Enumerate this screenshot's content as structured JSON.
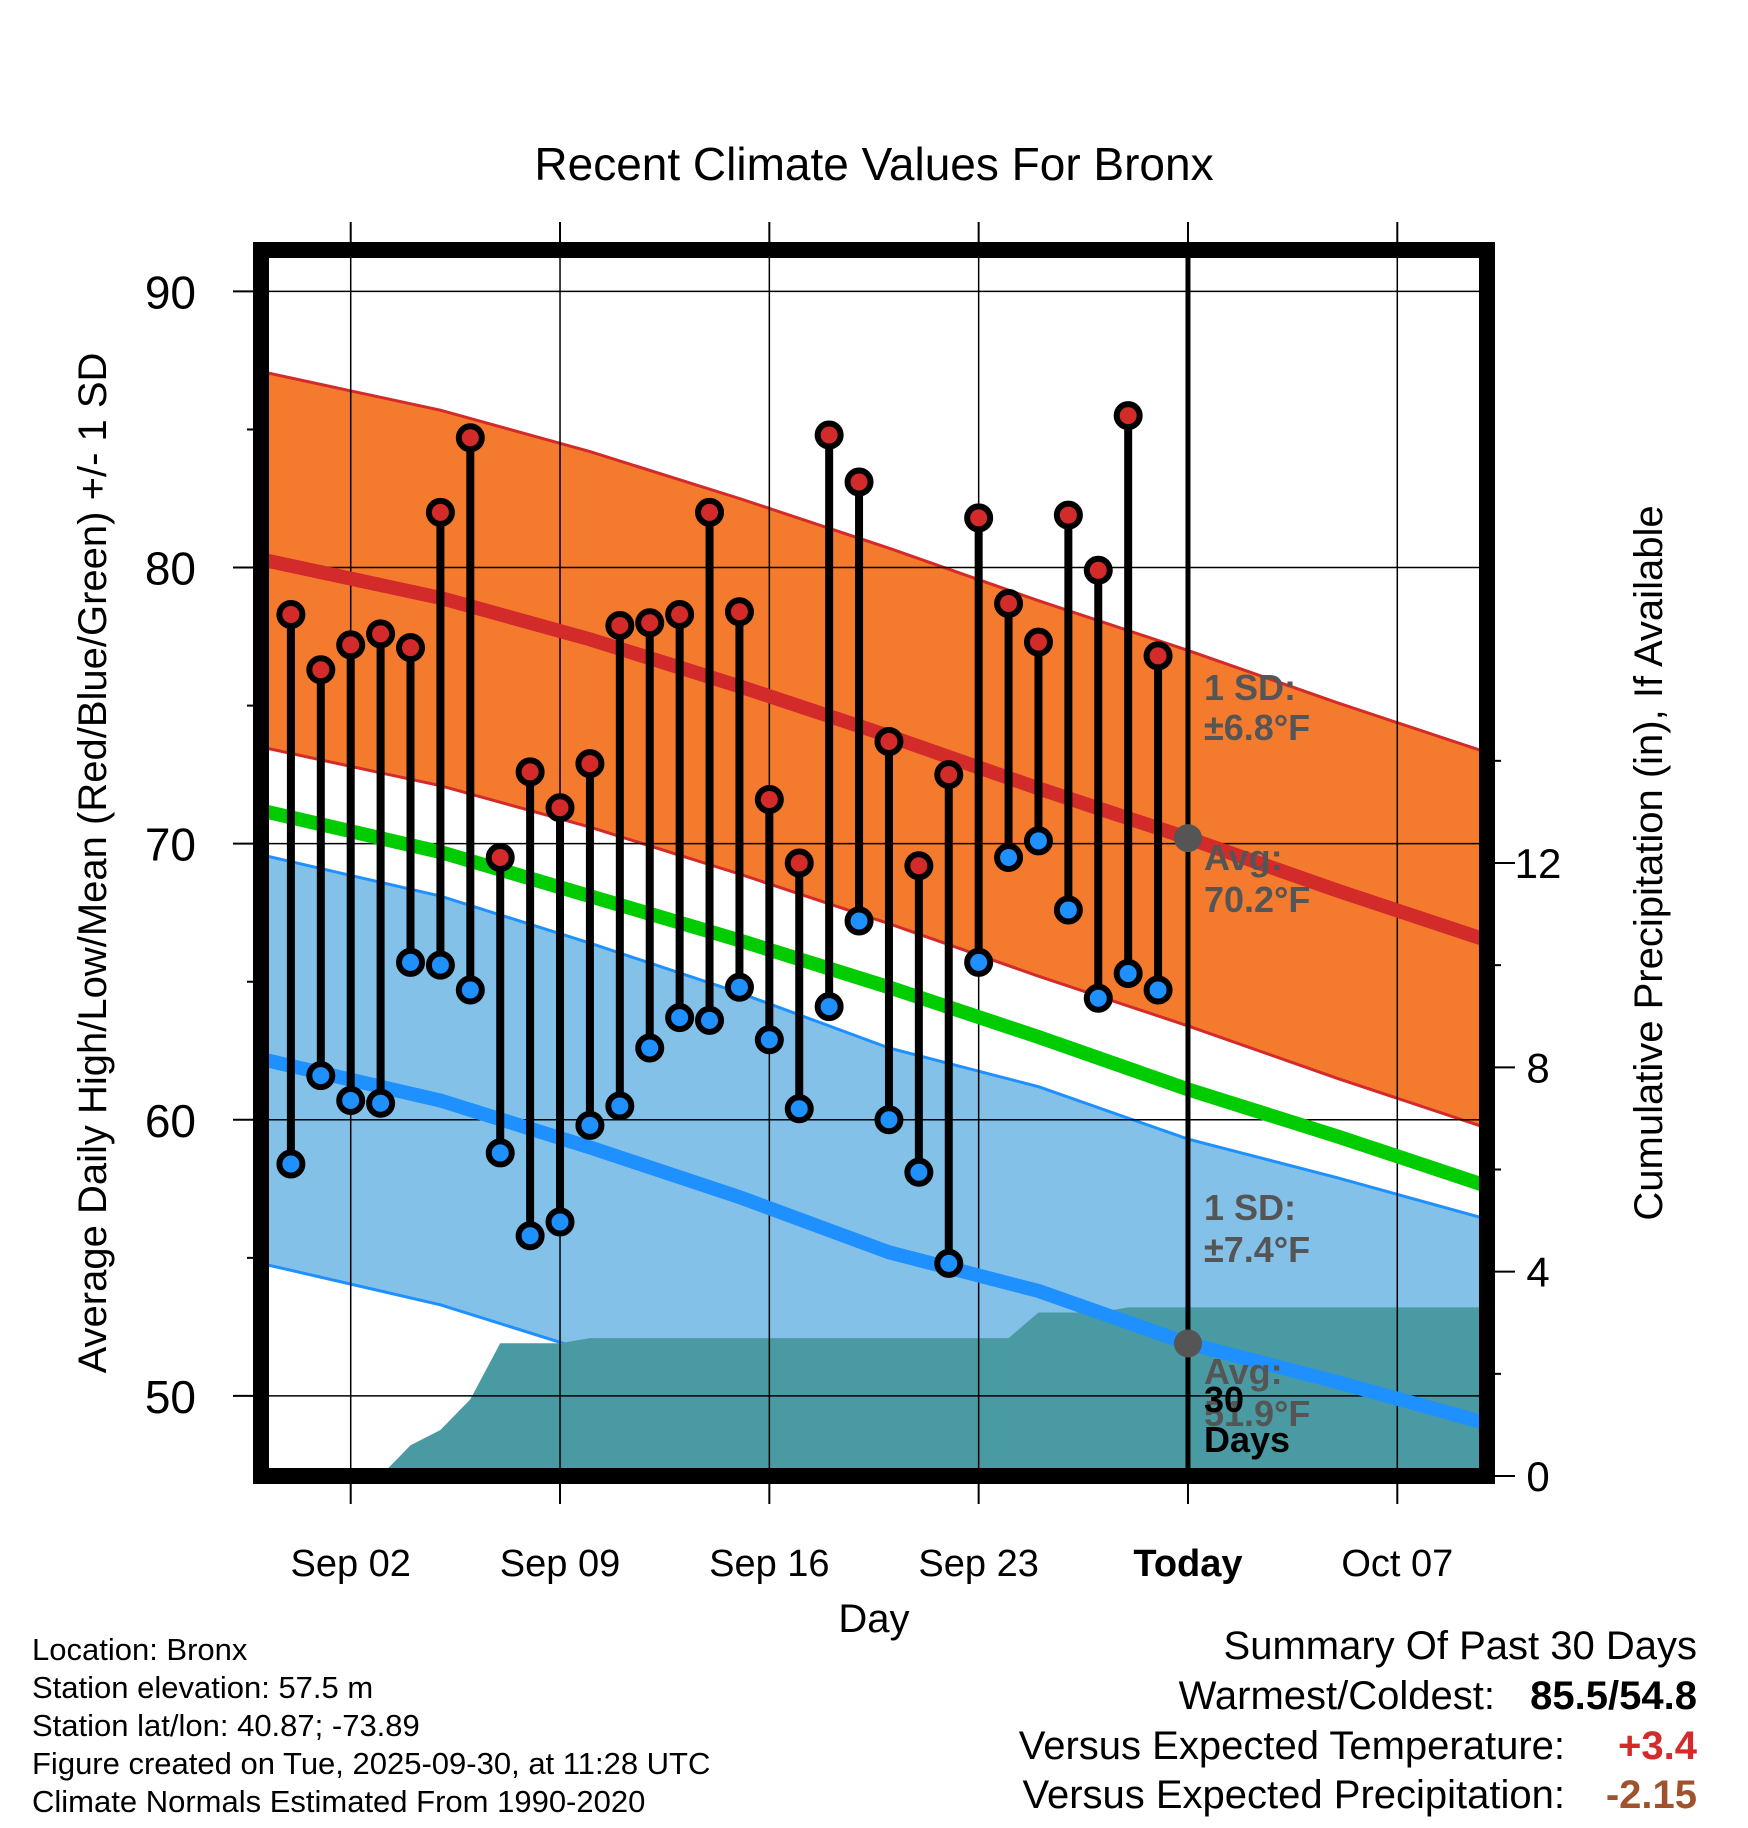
{
  "title": "Recent Climate Values For Bronx",
  "colors": {
    "high": "#d32a2a",
    "low": "#1e90ff",
    "mean": "#00cc00",
    "high_band": "#f47a2e",
    "low_band": "#84c1e8",
    "precip": "#4a9aa3",
    "today_marker": "#555555",
    "warm_anomaly": "#d32a2a",
    "precip_anomaly": "#a0522d"
  },
  "chart_data": {
    "type": "line",
    "title": "Recent Climate Values For Bronx",
    "xlabel": "Day",
    "ylabel_left": "Average Daily High/Low/Mean (Red/Blue/Green) +/- 1 SD",
    "ylabel_right": "Cumulative Precipitation (in), If Available",
    "x_range_days": [
      -1,
      40
    ],
    "ylim_left": [
      47.1,
      91.5
    ],
    "ylim_right": [
      0,
      24
    ],
    "yticks_left": [
      50,
      60,
      70,
      80,
      90
    ],
    "yticks_right": [
      0,
      4,
      8,
      12
    ],
    "xticks": [
      {
        "day": 2,
        "label": "Sep 02"
      },
      {
        "day": 9,
        "label": "Sep 09"
      },
      {
        "day": 16,
        "label": "Sep 16"
      },
      {
        "day": 23,
        "label": "Sep 23"
      },
      {
        "day": 30,
        "label": "Today"
      },
      {
        "day": 37,
        "label": "Oct 07"
      }
    ],
    "today_day": 30,
    "daily_observations": [
      {
        "day": 0,
        "high": 78.3,
        "low": 58.4
      },
      {
        "day": 1,
        "high": 76.3,
        "low": 61.6
      },
      {
        "day": 2,
        "high": 77.2,
        "low": 60.7
      },
      {
        "day": 3,
        "high": 77.6,
        "low": 60.6
      },
      {
        "day": 4,
        "high": 77.1,
        "low": 65.7
      },
      {
        "day": 5,
        "high": 82.0,
        "low": 65.6
      },
      {
        "day": 6,
        "high": 84.7,
        "low": 64.7
      },
      {
        "day": 7,
        "high": 69.5,
        "low": 58.8
      },
      {
        "day": 8,
        "high": 72.6,
        "low": 55.8
      },
      {
        "day": 9,
        "high": 71.3,
        "low": 56.3
      },
      {
        "day": 10,
        "high": 72.9,
        "low": 59.8
      },
      {
        "day": 11,
        "high": 77.9,
        "low": 60.5
      },
      {
        "day": 12,
        "high": 78.0,
        "low": 62.6
      },
      {
        "day": 13,
        "high": 78.3,
        "low": 63.7
      },
      {
        "day": 14,
        "high": 82.0,
        "low": 63.6
      },
      {
        "day": 15,
        "high": 78.4,
        "low": 64.8
      },
      {
        "day": 16,
        "high": 71.6,
        "low": 62.9
      },
      {
        "day": 17,
        "high": 69.3,
        "low": 60.4
      },
      {
        "day": 18,
        "high": 84.8,
        "low": 64.1
      },
      {
        "day": 19,
        "high": 83.1,
        "low": 67.2
      },
      {
        "day": 20,
        "high": 73.7,
        "low": 60.0
      },
      {
        "day": 21,
        "high": 69.2,
        "low": 58.1
      },
      {
        "day": 22,
        "high": 72.5,
        "low": 54.8
      },
      {
        "day": 23,
        "high": 81.8,
        "low": 65.7
      },
      {
        "day": 24,
        "high": 78.7,
        "low": 69.5
      },
      {
        "day": 25,
        "high": 77.3,
        "low": 70.1
      },
      {
        "day": 26,
        "high": 81.9,
        "low": 67.6
      },
      {
        "day": 27,
        "high": 79.9,
        "low": 64.4
      },
      {
        "day": 28,
        "high": 85.5,
        "low": 65.3
      },
      {
        "day": 29,
        "high": 76.8,
        "low": 64.7
      }
    ],
    "normals": {
      "days": [
        -1,
        5,
        10,
        15,
        20,
        25,
        30,
        35,
        40
      ],
      "high_avg": [
        80.3,
        78.9,
        77.4,
        75.7,
        73.9,
        72.0,
        70.2,
        68.3,
        66.5
      ],
      "low_avg": [
        62.2,
        60.7,
        59.0,
        57.2,
        55.2,
        53.8,
        51.9,
        50.5,
        49.0
      ],
      "mean_avg": [
        71.2,
        69.7,
        68.1,
        66.5,
        64.8,
        63.0,
        61.1,
        59.4,
        57.6
      ],
      "high_sd": 6.8,
      "low_sd": 7.4
    },
    "cumulative_precip": [
      {
        "day": -1,
        "value": 0.0
      },
      {
        "day": 3,
        "value": 0.0
      },
      {
        "day": 4,
        "value": 0.6
      },
      {
        "day": 5,
        "value": 0.9
      },
      {
        "day": 6,
        "value": 1.5
      },
      {
        "day": 7,
        "value": 2.6
      },
      {
        "day": 9,
        "value": 2.6
      },
      {
        "day": 10,
        "value": 2.7
      },
      {
        "day": 23,
        "value": 2.7
      },
      {
        "day": 24,
        "value": 2.7
      },
      {
        "day": 25,
        "value": 3.2
      },
      {
        "day": 27,
        "value": 3.2
      },
      {
        "day": 28,
        "value": 3.3
      },
      {
        "day": 40,
        "value": 3.3
      }
    ],
    "annotations": {
      "high_sd_label_1": "1 SD:",
      "high_sd_label_2": "±6.8°F",
      "high_avg_label_1": "Avg:",
      "high_avg_label_2": "70.2°F",
      "low_sd_label_1": "1 SD:",
      "low_sd_label_2": "±7.4°F",
      "low_avg_label_1": "Avg:",
      "low_avg_label_2": "51.9°F",
      "precip_days_label_1": "30",
      "precip_days_label_2": "Days"
    }
  },
  "station_info": [
    "Location: Bronx",
    "Station elevation: 57.5 m",
    "Station lat/lon: 40.87; -73.89",
    "Figure created on Tue, 2025-09-30, at 11:28 UTC",
    "Climate Normals Estimated From 1990-2020"
  ],
  "summary": {
    "title": "Summary Of Past 30 Days",
    "warmest_label": "Warmest/Coldest:",
    "warmest_value": "85.5",
    "coldest_value": "54.8",
    "slash": "/",
    "temp_label": "Versus Expected Temperature:",
    "temp_value": "+3.4",
    "precip_label": "Versus Expected Precipitation:",
    "precip_value": "-2.15"
  }
}
